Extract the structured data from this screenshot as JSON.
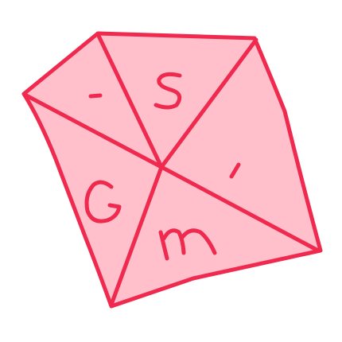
{
  "figure": {
    "regions": [
      {
        "id": "top-left",
        "label": "-"
      },
      {
        "id": "top",
        "label": "S"
      },
      {
        "id": "right",
        "label": "i"
      },
      {
        "id": "bottom",
        "label": "m"
      },
      {
        "id": "left",
        "label": "G"
      }
    ]
  },
  "colors": {
    "fill": "#ffc0cb",
    "stroke": "#f0294f",
    "background": "#ffffff"
  }
}
